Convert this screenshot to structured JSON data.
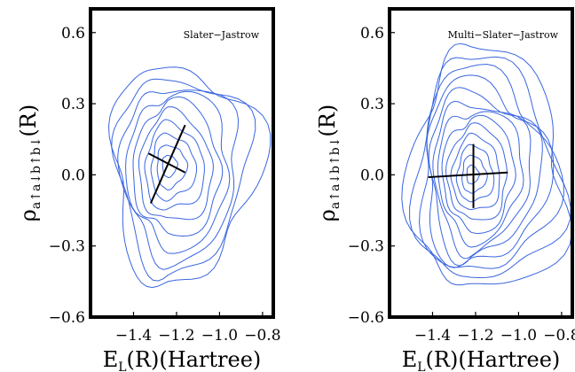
{
  "chart_data": [
    {
      "type": "contour",
      "annotation": "Slater−Jastrow",
      "xlabel_main": "E",
      "xlabel_sub": "L",
      "xlabel_rest": "(R)(Hartree)",
      "ylabel_main": "ρ",
      "ylabel_sub": "a↑a↓b↑b↓",
      "ylabel_rest": "(R)",
      "xlim": [
        -1.6,
        -0.75
      ],
      "ylim": [
        -0.6,
        0.7
      ],
      "xticks": [
        -1.4,
        -1.2,
        -1.0,
        -0.8
      ],
      "xtick_labels": [
        "−1.4",
        "−1.2",
        "−1.0",
        "−0.8"
      ],
      "yticks": [
        0.6,
        0.3,
        0.0,
        -0.3,
        -0.6
      ],
      "ytick_labels": [
        "0.6",
        "0.3",
        "0.0",
        "−0.3",
        "−0.6"
      ],
      "center": [
        -1.24,
        0.04
      ],
      "outer_extent": {
        "x": [
          -1.5,
          -0.82
        ],
        "y": [
          -0.45,
          0.47
        ]
      },
      "n_levels": 10,
      "contour_color": "#3a66e0",
      "principal_axes": [
        {
          "from": [
            -1.33,
            0.09
          ],
          "to": [
            -1.16,
            0.01
          ]
        },
        {
          "from": [
            -1.32,
            -0.12
          ],
          "to": [
            -1.16,
            0.21
          ]
        }
      ]
    },
    {
      "type": "contour",
      "annotation": "Multi−Slater−Jastrow",
      "xlabel_main": "E",
      "xlabel_sub": "L",
      "xlabel_rest": "(R)(Hartree)",
      "ylabel_main": "ρ",
      "ylabel_sub": "a↑a↓b↑b↓",
      "ylabel_rest": "(R)",
      "xlim": [
        -1.6,
        -0.75
      ],
      "ylim": [
        -0.6,
        0.7
      ],
      "xticks": [
        -1.4,
        -1.2,
        -1.0,
        -0.8
      ],
      "xtick_labels": [
        "−1.4",
        "−1.2",
        "−1.0",
        "−0.8"
      ],
      "yticks": [
        0.6,
        0.3,
        0.0,
        -0.3,
        -0.6
      ],
      "ytick_labels": [
        "0.6",
        "0.3",
        "0.0",
        "−0.3",
        "−0.6"
      ],
      "center": [
        -1.22,
        0.0
      ],
      "outer_extent": {
        "x": [
          -1.5,
          -0.77
        ],
        "y": [
          -0.5,
          0.52
        ]
      },
      "n_levels": 13,
      "contour_color": "#3a66e0",
      "principal_axes": [
        {
          "from": [
            -1.42,
            -0.01
          ],
          "to": [
            -1.05,
            0.01
          ]
        },
        {
          "from": [
            -1.21,
            -0.14
          ],
          "to": [
            -1.21,
            0.13
          ]
        }
      ]
    }
  ]
}
